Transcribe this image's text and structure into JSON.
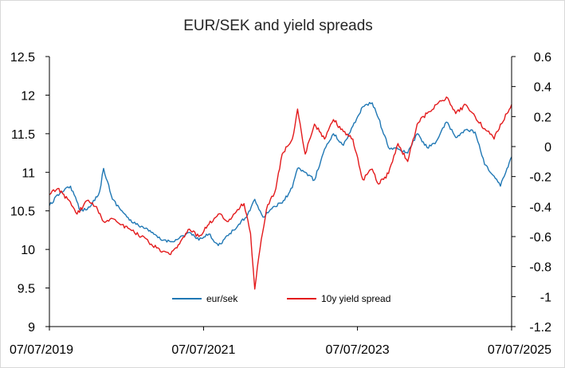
{
  "chart_data": {
    "type": "line",
    "title": "EUR/SEK and yield spreads",
    "x_tick_labels": [
      "07/07/2019",
      "07/07/2021",
      "07/07/2023",
      "07/07/2025"
    ],
    "x_range": [
      "2019-07-07",
      "2025-07-07"
    ],
    "y_left": {
      "ylim": [
        9,
        12.5
      ],
      "tick_labels": [
        "9",
        "9.5",
        "10",
        "10.5",
        "11",
        "11.5",
        "12",
        "12.5"
      ]
    },
    "y_right": {
      "ylim": [
        -1.2,
        0.6
      ],
      "tick_labels": [
        "-1.2",
        "-1",
        "-0.8",
        "-0.6",
        "-0.4",
        "-0.2",
        "0",
        "0.2",
        "0.4",
        "0.6"
      ]
    },
    "grid": false,
    "legend_position": "bottom-center",
    "series": [
      {
        "name": "eur/sek",
        "axis": "left",
        "color": "#1F77B4",
        "x": [
          "2019-07-07",
          "2019-09-01",
          "2019-10-15",
          "2019-12-01",
          "2020-01-15",
          "2020-03-01",
          "2020-03-20",
          "2020-05-01",
          "2020-06-15",
          "2020-08-01",
          "2020-09-15",
          "2020-11-01",
          "2020-12-15",
          "2021-02-01",
          "2021-03-15",
          "2021-05-01",
          "2021-06-15",
          "2021-08-01",
          "2021-09-15",
          "2021-11-01",
          "2021-12-15",
          "2022-02-01",
          "2022-03-07",
          "2022-04-15",
          "2022-06-01",
          "2022-07-15",
          "2022-09-01",
          "2022-09-26",
          "2022-11-01",
          "2022-12-15",
          "2023-02-01",
          "2023-03-15",
          "2023-05-01",
          "2023-06-15",
          "2023-08-01",
          "2023-09-15",
          "2023-10-15",
          "2023-12-01",
          "2024-01-15",
          "2024-03-01",
          "2024-04-15",
          "2024-06-01",
          "2024-07-15",
          "2024-09-01",
          "2024-10-15",
          "2024-12-01",
          "2025-01-15",
          "2025-03-01",
          "2025-04-15",
          "2025-05-15",
          "2025-06-15",
          "2025-07-07"
        ],
        "values": [
          10.57,
          10.75,
          10.82,
          10.5,
          10.55,
          10.75,
          11.05,
          10.65,
          10.5,
          10.35,
          10.3,
          10.22,
          10.13,
          10.1,
          10.15,
          10.22,
          10.12,
          10.2,
          10.05,
          10.18,
          10.3,
          10.45,
          10.65,
          10.42,
          10.55,
          10.6,
          10.8,
          11.05,
          11.0,
          10.9,
          11.3,
          11.5,
          11.35,
          11.6,
          11.85,
          11.9,
          11.7,
          11.32,
          11.3,
          11.25,
          11.5,
          11.32,
          11.4,
          11.65,
          11.45,
          11.55,
          11.52,
          11.1,
          10.95,
          10.82,
          11.05,
          11.2
        ]
      },
      {
        "name": "10y yield spread",
        "axis": "right",
        "color": "#E31A1C",
        "x": [
          "2019-07-07",
          "2019-08-15",
          "2019-10-01",
          "2019-11-15",
          "2020-01-01",
          "2020-02-15",
          "2020-03-20",
          "2020-05-01",
          "2020-06-15",
          "2020-08-01",
          "2020-09-15",
          "2020-11-01",
          "2020-12-15",
          "2021-02-01",
          "2021-03-15",
          "2021-05-01",
          "2021-06-15",
          "2021-08-01",
          "2021-09-15",
          "2021-11-01",
          "2021-12-15",
          "2022-01-15",
          "2022-02-15",
          "2022-03-07",
          "2022-04-01",
          "2022-05-01",
          "2022-06-15",
          "2022-07-15",
          "2022-09-01",
          "2022-09-26",
          "2022-11-01",
          "2022-12-15",
          "2023-02-01",
          "2023-03-15",
          "2023-05-01",
          "2023-06-15",
          "2023-08-01",
          "2023-09-15",
          "2023-10-15",
          "2023-12-01",
          "2024-01-15",
          "2024-03-01",
          "2024-04-15",
          "2024-06-01",
          "2024-07-15",
          "2024-09-01",
          "2024-10-15",
          "2024-12-01",
          "2025-01-15",
          "2025-03-01",
          "2025-04-15",
          "2025-05-15",
          "2025-06-15",
          "2025-07-07"
        ],
        "values": [
          -0.32,
          -0.28,
          -0.35,
          -0.45,
          -0.36,
          -0.4,
          -0.5,
          -0.48,
          -0.52,
          -0.56,
          -0.6,
          -0.65,
          -0.7,
          -0.72,
          -0.65,
          -0.55,
          -0.6,
          -0.52,
          -0.45,
          -0.5,
          -0.42,
          -0.38,
          -0.58,
          -0.95,
          -0.68,
          -0.42,
          -0.28,
          -0.05,
          0.05,
          0.25,
          -0.05,
          0.15,
          0.05,
          0.18,
          0.1,
          0.05,
          -0.22,
          -0.15,
          -0.25,
          -0.18,
          0.02,
          -0.1,
          0.15,
          0.22,
          0.28,
          0.33,
          0.22,
          0.28,
          0.2,
          0.12,
          0.05,
          0.15,
          0.22,
          0.28
        ]
      }
    ]
  }
}
